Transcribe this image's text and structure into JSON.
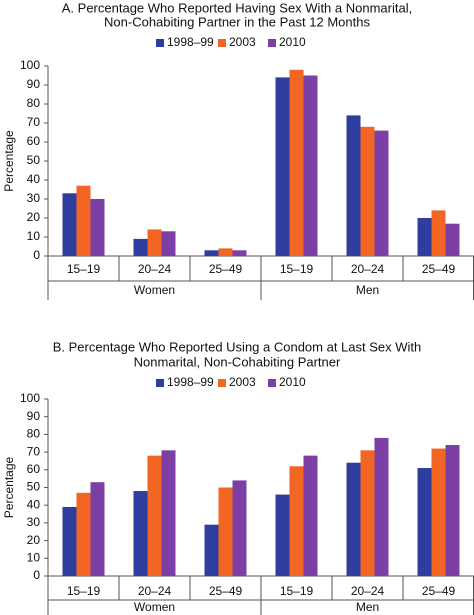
{
  "chart_data": [
    {
      "type": "bar",
      "title": [
        "A. Percentage Who Reported Having Sex With a Nonmarital,",
        "Non-Cohabiting Partner in the Past 12 Months"
      ],
      "y_label": "Percentage",
      "groups": [
        {
          "name": "Women",
          "categories": [
            "15–19",
            "20–24",
            "25–49"
          ]
        },
        {
          "name": "Men",
          "categories": [
            "15–19",
            "20–24",
            "25–49"
          ]
        }
      ],
      "series": [
        {
          "name": "1998–99",
          "color": "#2f3d9e",
          "values": [
            33,
            9,
            3,
            94,
            74,
            20
          ]
        },
        {
          "name": "2003",
          "color": "#f26522",
          "values": [
            37,
            14,
            4,
            98,
            68,
            24
          ]
        },
        {
          "name": "2010",
          "color": "#7b3fa6",
          "values": [
            30,
            13,
            3,
            95,
            66,
            17
          ]
        }
      ],
      "ylim": [
        0,
        100
      ],
      "yticks": [
        0,
        10,
        20,
        30,
        40,
        50,
        60,
        70,
        80,
        90,
        100
      ],
      "grid": false,
      "legend": "top"
    },
    {
      "type": "bar",
      "title": [
        "B. Percentage Who Reported Using a Condom at Last Sex With",
        "Nonmarital, Non-Cohabiting Partner"
      ],
      "y_label": "Percentage",
      "groups": [
        {
          "name": "Women",
          "categories": [
            "15–19",
            "20–24",
            "25–49"
          ]
        },
        {
          "name": "Men",
          "categories": [
            "15–19",
            "20–24",
            "25–49"
          ]
        }
      ],
      "series": [
        {
          "name": "1998–99",
          "color": "#2f3d9e",
          "values": [
            39,
            48,
            29,
            46,
            64,
            61
          ]
        },
        {
          "name": "2003",
          "color": "#f26522",
          "values": [
            47,
            68,
            50,
            62,
            71,
            72
          ]
        },
        {
          "name": "2010",
          "color": "#7b3fa6",
          "values": [
            53,
            71,
            54,
            68,
            78,
            74
          ]
        }
      ],
      "ylim": [
        0,
        100
      ],
      "yticks": [
        0,
        10,
        20,
        30,
        40,
        50,
        60,
        70,
        80,
        90,
        100
      ],
      "grid": false,
      "legend": "top"
    }
  ]
}
